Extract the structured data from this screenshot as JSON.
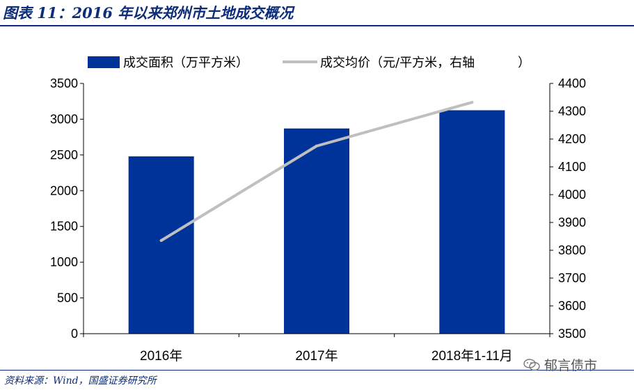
{
  "figure": {
    "title": "图表 11：2016 年以来郑州市土地成交概况",
    "source": "资料来源：Wind，国盛证券研究所",
    "watermark": "郁言债市"
  },
  "colors": {
    "bar": "#003399",
    "line": "#bfbfbf",
    "accent": "#0b2d7a"
  },
  "chart_data": {
    "type": "bar",
    "categories": [
      "2016年",
      "2017年",
      "2018年1-11月"
    ],
    "series": [
      {
        "name": "成交面积（万平方米）",
        "type": "bar",
        "axis": "left",
        "values": [
          2480,
          2870,
          3125
        ]
      },
      {
        "name": "成交均价（元/平方米，右轴",
        "type": "line",
        "axis": "right",
        "values": [
          3835,
          4175,
          4332
        ]
      }
    ],
    "y_left": {
      "ylim": [
        0,
        3500
      ],
      "ticks": [
        "0",
        "500",
        "1000",
        "1500",
        "2000",
        "2500",
        "3000",
        "3500"
      ]
    },
    "y_right": {
      "ylim": [
        3500,
        4400
      ],
      "ticks": [
        "3500",
        "3600",
        "3700",
        "3800",
        "3900",
        "4000",
        "4100",
        "4200",
        "4300",
        "4400"
      ]
    },
    "grid": false,
    "legend": "top"
  }
}
